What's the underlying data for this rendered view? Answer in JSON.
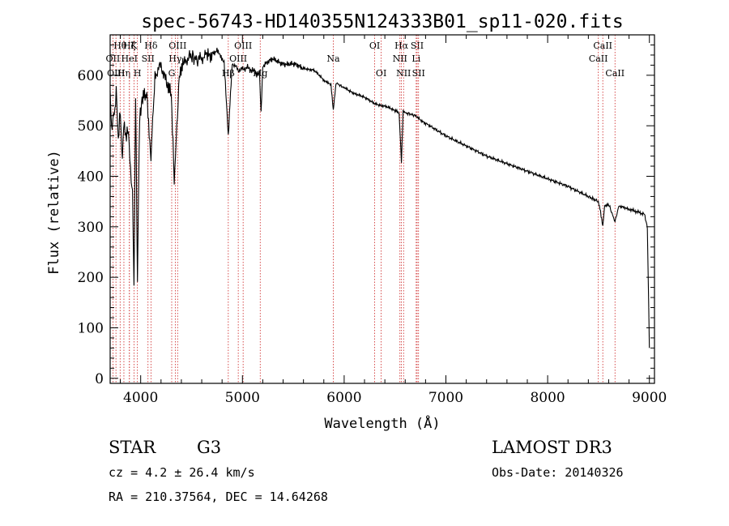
{
  "chart_data": {
    "type": "line",
    "title": "spec-56743-HD140355N124333B01_sp11-020.fits",
    "xlabel": "Wavelength (Å)",
    "ylabel": "Flux (relative)",
    "xlim": [
      3700,
      9050
    ],
    "ylim": [
      -10,
      680
    ],
    "xticks": [
      4000,
      5000,
      6000,
      7000,
      8000,
      9000
    ],
    "yticks": [
      0,
      100,
      200,
      300,
      400,
      500,
      600
    ],
    "series": [
      {
        "name": "flux",
        "color": "#000000",
        "x": [
          3700,
          3720,
          3740,
          3760,
          3780,
          3800,
          3820,
          3840,
          3860,
          3880,
          3900,
          3920,
          3934,
          3950,
          3968,
          3990,
          4020,
          4060,
          4101,
          4140,
          4200,
          4260,
          4300,
          4330,
          4380,
          4420,
          4480,
          4560,
          4650,
          4750,
          4820,
          4861,
          4900,
          4960,
          5050,
          5170,
          5183,
          5200,
          5300,
          5400,
          5500,
          5600,
          5700,
          5800,
          5870,
          5893,
          5920,
          6000,
          6100,
          6200,
          6300,
          6400,
          6500,
          6540,
          6563,
          6580,
          6620,
          6700,
          6800,
          7000,
          7200,
          7400,
          7600,
          7800,
          8000,
          8200,
          8400,
          8498,
          8520,
          8542,
          8560,
          8600,
          8662,
          8700,
          8800,
          8950,
          8980,
          9000
        ],
        "y": [
          560,
          490,
          530,
          560,
          480,
          520,
          440,
          510,
          470,
          500,
          400,
          380,
          180,
          560,
          200,
          520,
          550,
          570,
          440,
          600,
          620,
          580,
          560,
          390,
          600,
          620,
          640,
          630,
          640,
          650,
          630,
          480,
          625,
          610,
          615,
          600,
          520,
          620,
          630,
          625,
          620,
          615,
          610,
          590,
          580,
          530,
          585,
          575,
          565,
          555,
          545,
          538,
          530,
          525,
          430,
          528,
          525,
          520,
          505,
          480,
          460,
          440,
          425,
          410,
          395,
          380,
          360,
          350,
          330,
          300,
          340,
          345,
          310,
          340,
          335,
          325,
          300,
          60
        ]
      }
    ],
    "line_markers": [
      {
        "name": "Hθ",
        "x": 3798,
        "row": 1
      },
      {
        "name": "OII",
        "x": 3727,
        "row": 2
      },
      {
        "name": "OIII",
        "x": 3757,
        "row": 3
      },
      {
        "name": "Hη",
        "x": 3835,
        "row": 3
      },
      {
        "name": "Hζ",
        "x": 3889,
        "row": 1
      },
      {
        "name": "HeI",
        "x": 3889,
        "row": 2
      },
      {
        "name": "K",
        "x": 3934,
        "row": 1
      },
      {
        "name": "SII",
        "x": 4072,
        "row": 2
      },
      {
        "name": "H",
        "x": 3968,
        "row": 3
      },
      {
        "name": "Hδ",
        "x": 4101,
        "row": 1
      },
      {
        "name": "OIII",
        "x": 4363,
        "row": 1
      },
      {
        "name": "Hγ",
        "x": 4340,
        "row": 2
      },
      {
        "name": "G",
        "x": 4305,
        "row": 3
      },
      {
        "name": "Hβ",
        "x": 4861,
        "row": 3
      },
      {
        "name": "OIII",
        "x": 5007,
        "row": 1
      },
      {
        "name": "OIII",
        "x": 4959,
        "row": 2
      },
      {
        "name": "Mg",
        "x": 5175,
        "row": 3
      },
      {
        "name": "Na",
        "x": 5893,
        "row": 2
      },
      {
        "name": "OI",
        "x": 6300,
        "row": 1
      },
      {
        "name": "OI",
        "x": 6364,
        "row": 3
      },
      {
        "name": "Hα",
        "x": 6563,
        "row": 1
      },
      {
        "name": "NII",
        "x": 6548,
        "row": 2
      },
      {
        "name": "NII",
        "x": 6584,
        "row": 3
      },
      {
        "name": "SII",
        "x": 6717,
        "row": 1
      },
      {
        "name": "Li",
        "x": 6708,
        "row": 2
      },
      {
        "name": "SII",
        "x": 6731,
        "row": 3
      },
      {
        "name": "CaII",
        "x": 8542,
        "row": 1
      },
      {
        "name": "CaII",
        "x": 8498,
        "row": 2
      },
      {
        "name": "CaII",
        "x": 8662,
        "row": 3
      }
    ],
    "marker_color": "#cc2222"
  },
  "info": {
    "object_class": "STAR",
    "subclass": "G3",
    "survey": "LAMOST DR3",
    "redshift_text": "cz = 4.2 ± 26.4 km/s",
    "obs_date_text": "Obs-Date: 20140326",
    "coords_text": "RA = 210.37564, DEC =  14.64268"
  }
}
